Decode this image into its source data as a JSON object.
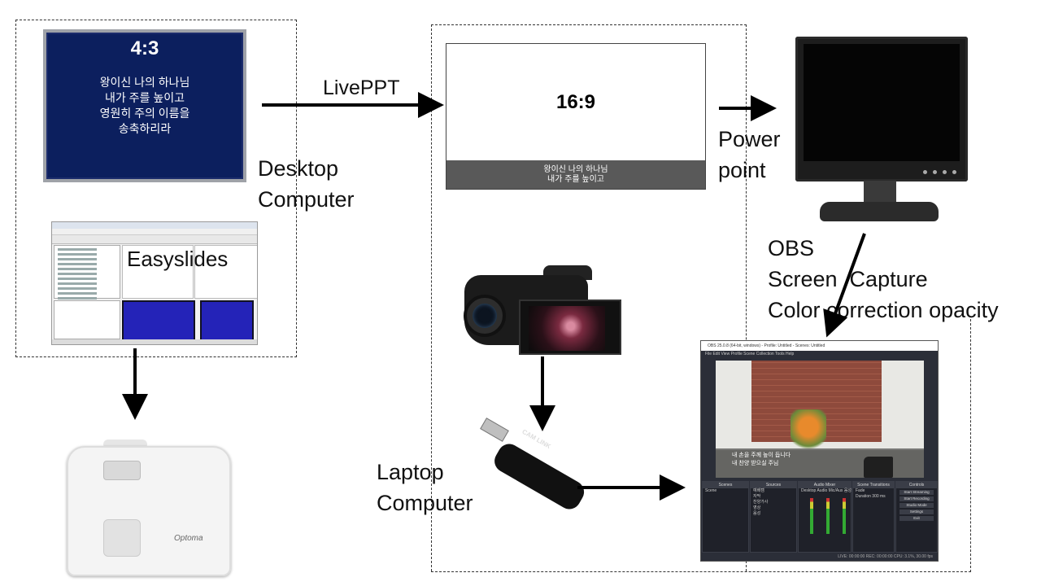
{
  "desktop_section": {
    "label": "Desktop\nComputer",
    "slide_4_3": {
      "ratio": "4:3",
      "lyrics": "왕이신 나의 하나님\n내가 주를 높이고\n영원히 주의 이름을\n송축하리라"
    },
    "easyslides_label": "Easyslides"
  },
  "livePPT_label": "LivePPT",
  "laptop_section": {
    "label": "Laptop\nComputer",
    "slide_16_9": {
      "ratio": "16:9",
      "caption": "왕이신 나의 하나님\n내가 주를 높이고"
    }
  },
  "powerpoint_label": "Power\npoint",
  "obs_label": "OBS\nScreen  Capture\nColor correction opacity",
  "cam_link_label": "CAM LINK",
  "projector_logo": "Optoma",
  "obs_window": {
    "title": "OBS 25.0.8 (64-bit, windows) - Profile: Untitled - Scenes: Untitled",
    "menu": "File  Edit  View  Profile  Scene Collection  Tools  Help",
    "caption": "내 손을 주께 높이 듭니다\n내 찬양 받으실 주님",
    "docks": {
      "scenes": {
        "title": "Scenes",
        "items": [
          "Scene"
        ]
      },
      "sources": {
        "title": "Sources",
        "items": [
          "예배캠",
          "자막",
          "찬양가사",
          "영상",
          "음성"
        ]
      },
      "mixer": {
        "title": "Audio Mixer",
        "items": [
          "Desktop Audio",
          "Mic/Aux",
          "음성"
        ]
      },
      "transitions": {
        "title": "Scene Transitions",
        "items": [
          "Fade",
          "Duration  300 ms"
        ]
      },
      "controls": {
        "title": "Controls",
        "buttons": [
          "Start Streaming",
          "Start Recording",
          "Studio Mode",
          "Settings",
          "Exit"
        ]
      }
    },
    "status": "LIVE: 00:00:00    REC: 00:00:00    CPU: 3.1%, 30.00 fps"
  }
}
